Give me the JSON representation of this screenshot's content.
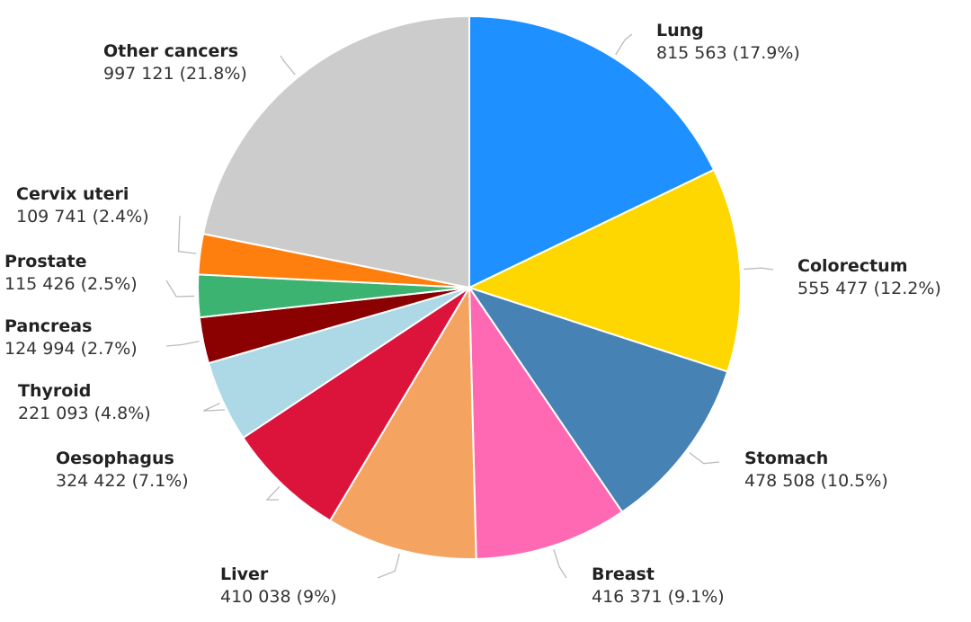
{
  "chart_data": {
    "type": "pie",
    "categories": [
      "Lung",
      "Colorectum",
      "Stomach",
      "Breast",
      "Liver",
      "Oesophagus",
      "Thyroid",
      "Pancreas",
      "Prostate",
      "Cervix uteri",
      "Other cancers"
    ],
    "values": [
      815563,
      555477,
      478508,
      416371,
      410038,
      324422,
      221093,
      124994,
      115426,
      109741,
      997121
    ],
    "value_labels": [
      "815 563 (17.9%)",
      "555 477 (12.2%)",
      "478 508 (10.5%)",
      "416 371 (9.1%)",
      "410 038 (9%)",
      "324 422 (7.1%)",
      "221 093 (4.8%)",
      "124 994 (2.7%)",
      "115 426 (2.5%)",
      "109 741 (2.4%)",
      "997 121 (21.8%)"
    ],
    "colors": [
      "#1e90ff",
      "#ffd700",
      "#4682b4",
      "#ff69b4",
      "#f4a460",
      "#dc143c",
      "#add8e6",
      "#8b0000",
      "#3cb371",
      "#ff7f0e",
      "#cccccc"
    ]
  }
}
